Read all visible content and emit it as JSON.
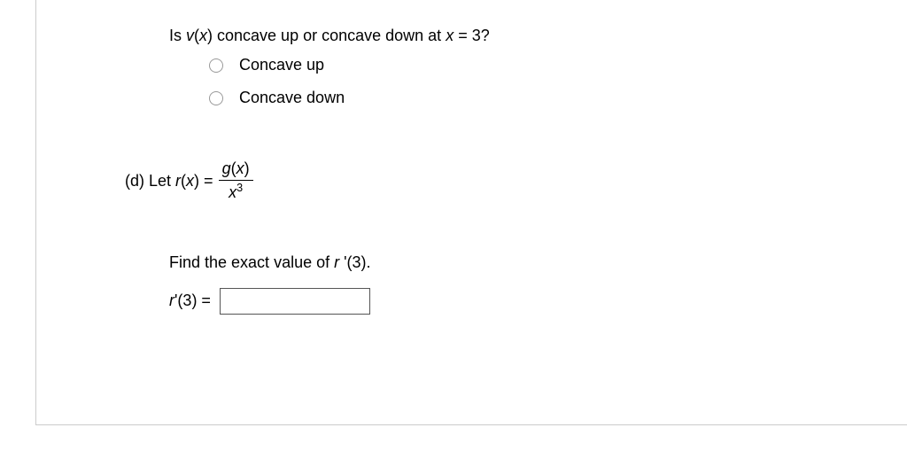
{
  "question": {
    "prompt_prefix": "Is ",
    "prompt_func": "v",
    "prompt_arg": "(",
    "prompt_var": "x",
    "prompt_close": ")",
    "prompt_mid": " concave up or concave down at ",
    "prompt_xvar": "x",
    "prompt_eq": " = 3?",
    "options": [
      "Concave up",
      "Concave down"
    ]
  },
  "part_d": {
    "label": "(d) Let ",
    "func": "r",
    "arg_open": "(",
    "var": "x",
    "arg_close": ") = ",
    "frac_num_func": "g",
    "frac_num_open": "(",
    "frac_num_var": "x",
    "frac_num_close": ")",
    "frac_den_var": "x",
    "frac_den_exp": "3"
  },
  "find": {
    "text_prefix": "Find the exact value of ",
    "func": "r ",
    "prime": "'(3).",
    "answer_label_func": "r ",
    "answer_label_rest": "'(3) ="
  }
}
